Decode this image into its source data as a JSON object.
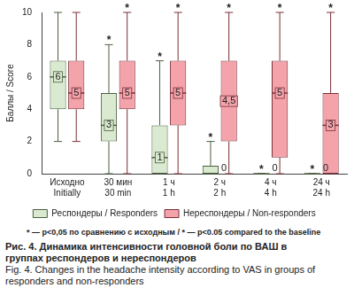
{
  "chart_data": {
    "type": "boxplot",
    "categories": [
      [
        "Исходно",
        "Initially"
      ],
      [
        "30 мин",
        "30 min"
      ],
      [
        "1 ч",
        "1 h"
      ],
      [
        "2 ч",
        "2 h"
      ],
      [
        "4 ч",
        "4 h"
      ],
      [
        "24 ч",
        "24 h"
      ]
    ],
    "y_label": "Баллы / Score",
    "ylim": [
      0,
      10
    ],
    "yticks": [
      0,
      2,
      4,
      6,
      8,
      10
    ],
    "grid": false,
    "legend": "bottom",
    "data_labels": true,
    "significance_mark": "*",
    "series": [
      {
        "name": "Респондеры / Responders",
        "color": "#d9ead0",
        "min": [
          2,
          0,
          0,
          0,
          0,
          0
        ],
        "q1": [
          4,
          2,
          0,
          0,
          0,
          0
        ],
        "values": [
          6,
          3,
          1,
          0,
          0,
          0
        ],
        "q3": [
          7,
          5,
          3,
          0.5,
          0,
          0
        ],
        "max": [
          10,
          8,
          7,
          2,
          0,
          0
        ],
        "value_labels": [
          "6",
          "3",
          "1",
          "0",
          "0",
          "0"
        ],
        "significant": [
          false,
          true,
          true,
          true,
          true,
          true
        ]
      },
      {
        "name": "Нереспондеры / Non-responders",
        "color": "#f4a3ab",
        "min": [
          2,
          0,
          0,
          0,
          0,
          0
        ],
        "q1": [
          4,
          4,
          3,
          2,
          1,
          0
        ],
        "values": [
          5,
          5,
          5,
          4.5,
          5,
          3
        ],
        "q3": [
          7,
          7,
          7,
          7,
          7,
          5
        ],
        "max": [
          10,
          10,
          10,
          10,
          10,
          10
        ],
        "value_labels": [
          "5",
          "5",
          "5",
          "4,5",
          "5",
          "3"
        ],
        "significant": [
          false,
          true,
          true,
          true,
          true,
          true
        ]
      }
    ],
    "annotation": "* — p<0,05 по сравнению с исходным / * — p<0.05 compared to the baseline",
    "caption": [
      "Рис. 4. Динамика интенсивности головной боли по ВАШ в группах респондеров и нереспондеров",
      "Fig. 4. Changes in the headache intensity according to VAS in groups of responders and non-responders"
    ]
  }
}
